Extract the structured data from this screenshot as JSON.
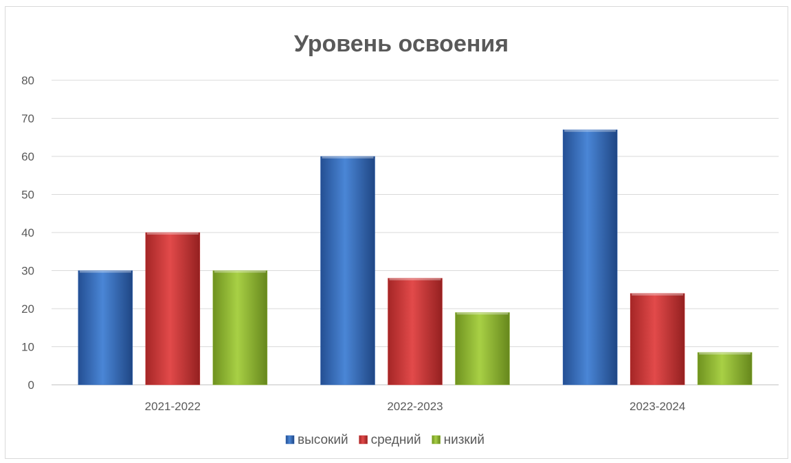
{
  "chart_data": {
    "type": "bar",
    "title": "Уровень освоения",
    "xlabel": "",
    "ylabel": "",
    "categories": [
      "2021-2022",
      "2022-2023",
      "2023-2024"
    ],
    "series": [
      {
        "name": "высокий",
        "values": [
          30,
          60,
          67
        ],
        "color": "#2f64b4"
      },
      {
        "name": "средний",
        "values": [
          40,
          28,
          24
        ],
        "color": "#c83232"
      },
      {
        "name": "низкий",
        "values": [
          30,
          19,
          8.5
        ],
        "color": "#8db530"
      }
    ],
    "ylim": [
      0,
      80
    ],
    "yticks": [
      "0",
      "10",
      "20",
      "30",
      "40",
      "50",
      "60",
      "70",
      "80"
    ],
    "grid": true,
    "legend_position": "bottom"
  }
}
